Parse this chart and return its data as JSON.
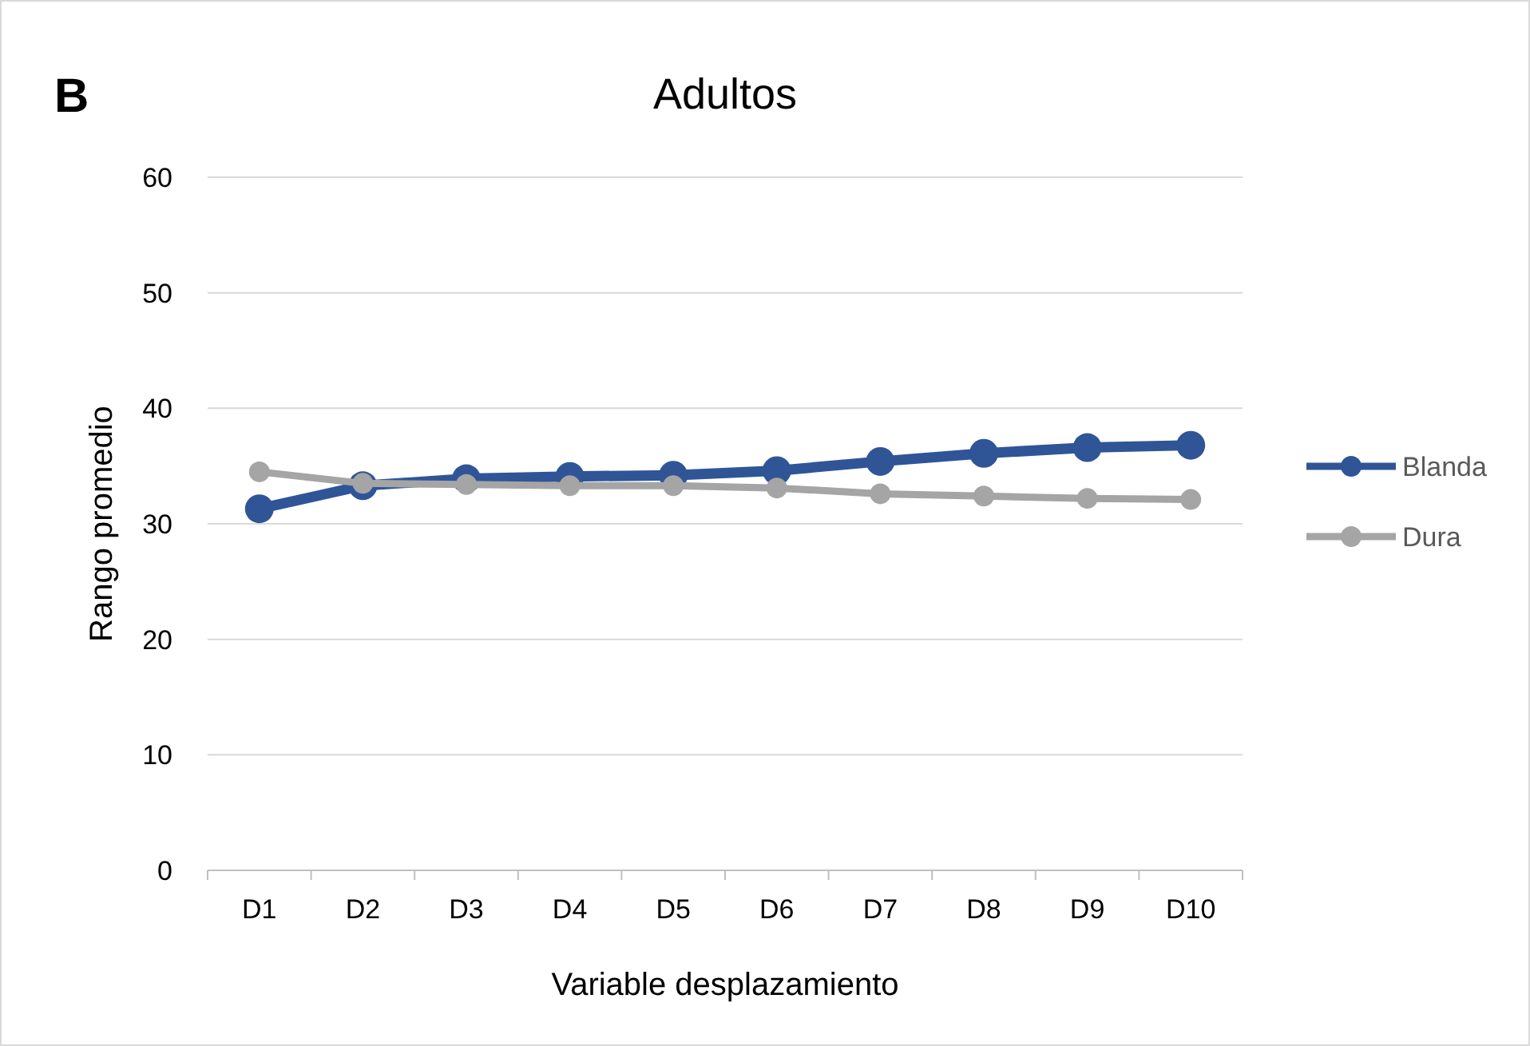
{
  "chart_data": {
    "type": "line",
    "title": "Adultos",
    "xlabel": "Variable desplazamiento",
    "ylabel": "Rango promedio",
    "annotations": [
      "B"
    ],
    "categories": [
      "D1",
      "D2",
      "D3",
      "D4",
      "D5",
      "D6",
      "D7",
      "D8",
      "D9",
      "D10"
    ],
    "series": [
      {
        "name": "Blanda",
        "color": "#2f5597",
        "values": [
          31.3,
          33.3,
          33.9,
          34.1,
          34.2,
          34.6,
          35.4,
          36.1,
          36.6,
          36.8
        ]
      },
      {
        "name": "Dura",
        "color": "#a5a5a5",
        "values": [
          34.5,
          33.5,
          33.4,
          33.3,
          33.3,
          33.1,
          32.6,
          32.4,
          32.2,
          32.1
        ]
      }
    ],
    "ylim": [
      0,
      60
    ],
    "yticks": [
      0,
      10,
      20,
      30,
      40,
      50,
      60
    ],
    "grid": "y",
    "legend": "right",
    "marker": "circle",
    "line_style": "solid"
  }
}
